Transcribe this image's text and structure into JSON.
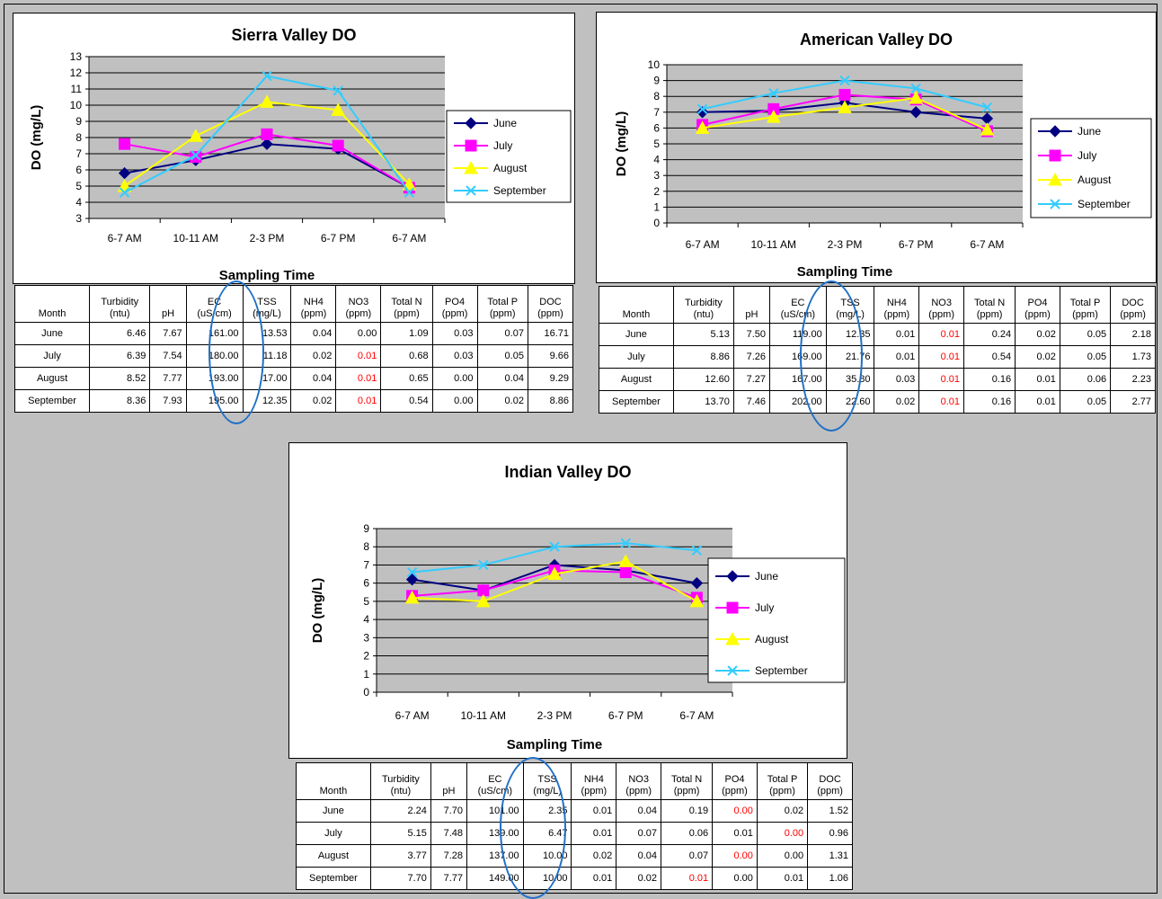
{
  "colors": {
    "june": "#000080",
    "july": "#ff00ff",
    "august": "#ffff00",
    "september": "#33ccff",
    "plot_bg": "#c0c0c0",
    "highlight": "#ff0000",
    "ellipse": "#1f6fc6"
  },
  "chart_data": [
    {
      "type": "line",
      "title": "Sierra Valley DO",
      "xlabel": "Sampling Time",
      "ylabel": "DO (mg/L)",
      "categories": [
        "6-7 AM",
        "10-11 AM",
        "2-3 PM",
        "6-7 PM",
        "6-7 AM"
      ],
      "ylim": [
        3,
        13
      ],
      "yticks": [
        3,
        4,
        5,
        6,
        7,
        8,
        9,
        10,
        11,
        12,
        13
      ],
      "grid": true,
      "legend": "right",
      "series": [
        {
          "name": "June",
          "values": [
            5.8,
            6.6,
            7.6,
            7.3,
            4.9
          ]
        },
        {
          "name": "July",
          "values": [
            7.6,
            6.8,
            8.2,
            7.5,
            4.9
          ]
        },
        {
          "name": "August",
          "values": [
            5.0,
            8.1,
            10.2,
            9.7,
            5.1
          ]
        },
        {
          "name": "September",
          "values": [
            4.6,
            6.9,
            11.8,
            10.9,
            4.6
          ]
        }
      ]
    },
    {
      "type": "line",
      "title": "American Valley DO",
      "xlabel": "Sampling Time",
      "ylabel": "DO (mg/L)",
      "categories": [
        "6-7 AM",
        "10-11 AM",
        "2-3 PM",
        "6-7 PM",
        "6-7 AM"
      ],
      "ylim": [
        0,
        10
      ],
      "yticks": [
        0,
        1,
        2,
        3,
        4,
        5,
        6,
        7,
        8,
        9,
        10
      ],
      "grid": true,
      "legend": "right",
      "series": [
        {
          "name": "June",
          "values": [
            7.0,
            7.1,
            7.6,
            7.0,
            6.6
          ]
        },
        {
          "name": "July",
          "values": [
            6.2,
            7.2,
            8.1,
            7.8,
            5.8
          ]
        },
        {
          "name": "August",
          "values": [
            6.0,
            6.7,
            7.3,
            7.9,
            5.9
          ]
        },
        {
          "name": "September",
          "values": [
            7.2,
            8.2,
            9.0,
            8.5,
            7.3
          ]
        }
      ]
    },
    {
      "type": "line",
      "title": "Indian Valley DO",
      "xlabel": "Sampling Time",
      "ylabel": "DO (mg/L)",
      "categories": [
        "6-7 AM",
        "10-11 AM",
        "2-3 PM",
        "6-7 PM",
        "6-7 AM"
      ],
      "ylim": [
        0,
        9
      ],
      "yticks": [
        0,
        1,
        2,
        3,
        4,
        5,
        6,
        7,
        8,
        9
      ],
      "grid": true,
      "legend": "right",
      "series": [
        {
          "name": "June",
          "values": [
            6.2,
            5.6,
            7.0,
            6.7,
            6.0
          ]
        },
        {
          "name": "July",
          "values": [
            5.3,
            5.6,
            6.7,
            6.6,
            5.2
          ]
        },
        {
          "name": "August",
          "values": [
            5.2,
            5.0,
            6.5,
            7.2,
            5.0
          ]
        },
        {
          "name": "September",
          "values": [
            6.6,
            7.0,
            8.0,
            8.2,
            7.8
          ]
        }
      ]
    }
  ],
  "tables": [
    {
      "headers": [
        [
          "Month"
        ],
        [
          "Turbidity",
          "(ntu)"
        ],
        [
          "pH"
        ],
        [
          "EC",
          "(uS/cm)"
        ],
        [
          "TSS",
          "(mg/L)"
        ],
        [
          "NH4",
          "(ppm)"
        ],
        [
          "NO3",
          "(ppm)"
        ],
        [
          "Total N",
          "(ppm)"
        ],
        [
          "PO4",
          "(ppm)"
        ],
        [
          "Total P",
          "(ppm)"
        ],
        [
          "DOC",
          "(ppm)"
        ]
      ],
      "rows": [
        [
          "June",
          "6.46",
          "7.67",
          "161.00",
          "13.53",
          "0.04",
          "0.00",
          "1.09",
          "0.03",
          "0.07",
          "16.71"
        ],
        [
          "July",
          "6.39",
          "7.54",
          "180.00",
          "11.18",
          "0.02",
          "0.01",
          "0.68",
          "0.03",
          "0.05",
          "9.66"
        ],
        [
          "August",
          "8.52",
          "7.77",
          "193.00",
          "17.00",
          "0.04",
          "0.01",
          "0.65",
          "0.00",
          "0.04",
          "9.29"
        ],
        [
          "September",
          "8.36",
          "7.93",
          "195.00",
          "12.35",
          "0.02",
          "0.01",
          "0.54",
          "0.00",
          "0.02",
          "8.86"
        ]
      ],
      "highlighted": [
        [
          1,
          6
        ],
        [
          2,
          6
        ],
        [
          3,
          6
        ]
      ]
    },
    {
      "headers": [
        [
          "Month"
        ],
        [
          "Turbidity",
          "(ntu)"
        ],
        [
          "pH"
        ],
        [
          "EC",
          "(uS/cm)"
        ],
        [
          "TSS",
          "(mg/L)"
        ],
        [
          "NH4",
          "(ppm)"
        ],
        [
          "NO3",
          "(ppm)"
        ],
        [
          "Total N",
          "(ppm)"
        ],
        [
          "PO4",
          "(ppm)"
        ],
        [
          "Total P",
          "(ppm)"
        ],
        [
          "DOC",
          "(ppm)"
        ]
      ],
      "rows": [
        [
          "June",
          "5.13",
          "7.50",
          "119.00",
          "12.35",
          "0.01",
          "0.01",
          "0.24",
          "0.02",
          "0.05",
          "2.18"
        ],
        [
          "July",
          "8.86",
          "7.26",
          "169.00",
          "21.76",
          "0.01",
          "0.01",
          "0.54",
          "0.02",
          "0.05",
          "1.73"
        ],
        [
          "August",
          "12.60",
          "7.27",
          "167.00",
          "35.80",
          "0.03",
          "0.01",
          "0.16",
          "0.01",
          "0.06",
          "2.23"
        ],
        [
          "September",
          "13.70",
          "7.46",
          "202.00",
          "22.60",
          "0.02",
          "0.01",
          "0.16",
          "0.01",
          "0.05",
          "2.77"
        ]
      ],
      "highlighted": [
        [
          0,
          6
        ],
        [
          1,
          6
        ],
        [
          2,
          6
        ],
        [
          3,
          6
        ]
      ]
    },
    {
      "headers": [
        [
          "Month"
        ],
        [
          "Turbidity",
          "(ntu)"
        ],
        [
          "pH"
        ],
        [
          "EC",
          "(uS/cm)"
        ],
        [
          "TSS",
          "(mg/L)"
        ],
        [
          "NH4",
          "(ppm)"
        ],
        [
          "NO3",
          "(ppm)"
        ],
        [
          "Total N",
          "(ppm)"
        ],
        [
          "PO4",
          "(ppm)"
        ],
        [
          "Total P",
          "(ppm)"
        ],
        [
          "DOC",
          "(ppm)"
        ]
      ],
      "rows": [
        [
          "June",
          "2.24",
          "7.70",
          "101.00",
          "2.35",
          "0.01",
          "0.04",
          "0.19",
          "0.00",
          "0.02",
          "1.52"
        ],
        [
          "July",
          "5.15",
          "7.48",
          "139.00",
          "6.47",
          "0.01",
          "0.07",
          "0.06",
          "0.01",
          "0.00",
          "0.96"
        ],
        [
          "August",
          "3.77",
          "7.28",
          "137.00",
          "10.00",
          "0.02",
          "0.04",
          "0.07",
          "0.00",
          "0.00",
          "1.31"
        ],
        [
          "September",
          "7.70",
          "7.77",
          "149.00",
          "10.00",
          "0.01",
          "0.02",
          "0.01",
          "0.00",
          "0.01",
          "1.06"
        ]
      ],
      "highlighted": [
        [
          0,
          8
        ],
        [
          1,
          9
        ],
        [
          2,
          8
        ],
        [
          3,
          7
        ]
      ]
    }
  ]
}
